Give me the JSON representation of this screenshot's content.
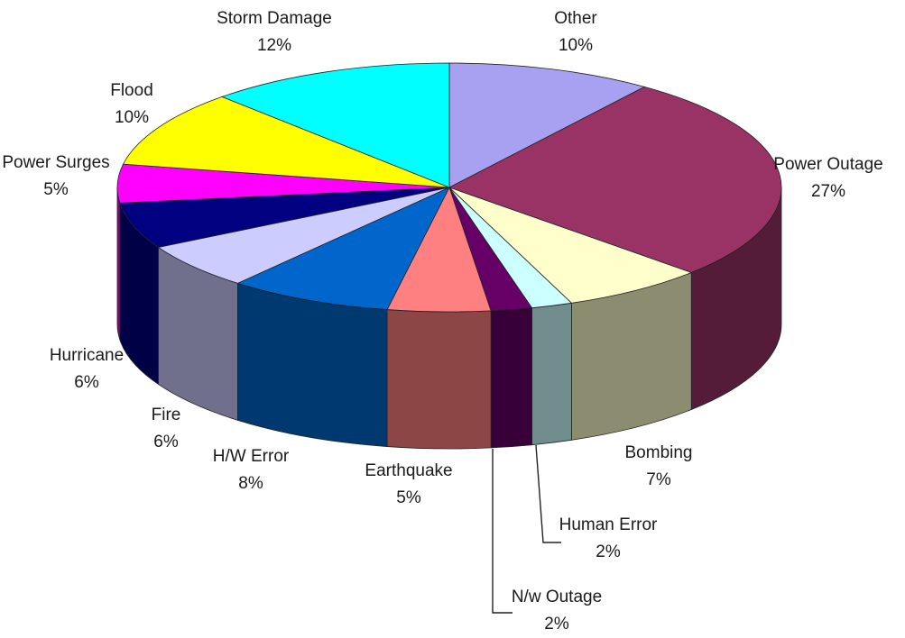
{
  "chart_data": {
    "type": "pie",
    "variant": "3d",
    "title": "",
    "slices": [
      {
        "label": "Other",
        "value": 10,
        "value_label": "10%",
        "color": "#A8A0F0"
      },
      {
        "label": "Power Outage",
        "value": 27,
        "value_label": "27%",
        "color": "#993366"
      },
      {
        "label": "Bombing",
        "value": 7,
        "value_label": "7%",
        "color": "#FFFFCC"
      },
      {
        "label": "Human Error",
        "value": 2,
        "value_label": "2%",
        "color": "#CCFFFF"
      },
      {
        "label": "N/w Outage",
        "value": 2,
        "value_label": "2%",
        "color": "#660066"
      },
      {
        "label": "Earthquake",
        "value": 5,
        "value_label": "5%",
        "color": "#FF8080"
      },
      {
        "label": "H/W Error",
        "value": 8,
        "value_label": "8%",
        "color": "#0066CC"
      },
      {
        "label": "Fire",
        "value": 6,
        "value_label": "6%",
        "color": "#CCCCFF"
      },
      {
        "label": "Hurricane",
        "value": 6,
        "value_label": "6%",
        "color": "#000080"
      },
      {
        "label": "Power Surges",
        "value": 5,
        "value_label": "5%",
        "color": "#FF00FF"
      },
      {
        "label": "Flood",
        "value": 10,
        "value_label": "10%",
        "color": "#FFFF00"
      },
      {
        "label": "Storm Damage",
        "value": 12,
        "value_label": "12%",
        "color": "#00FFFF"
      }
    ],
    "legend": "none"
  }
}
